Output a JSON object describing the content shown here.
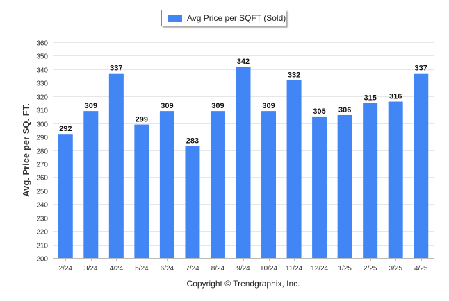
{
  "chart_data": {
    "type": "bar",
    "categories": [
      "2/24",
      "3/24",
      "4/24",
      "5/24",
      "6/24",
      "7/24",
      "8/24",
      "9/24",
      "10/24",
      "11/24",
      "12/24",
      "1/25",
      "2/25",
      "3/25",
      "4/25"
    ],
    "series": [
      {
        "name": "Avg Price per SQFT (Sold)",
        "values": [
          292,
          309,
          337,
          299,
          309,
          283,
          309,
          342,
          309,
          332,
          305,
          306,
          315,
          316,
          337
        ]
      }
    ],
    "xlabel": "",
    "ylabel": "Avg. Price per SQ. FT.",
    "ylim": [
      200,
      360
    ],
    "yticks": [
      200,
      210,
      220,
      230,
      240,
      250,
      260,
      270,
      280,
      290,
      300,
      310,
      320,
      330,
      340,
      350,
      360
    ],
    "grid": true,
    "legend": "top-center",
    "data_labels": true,
    "bar_color": "#4285f4"
  },
  "footer": {
    "copyright": "Copyright © Trendgraphix, Inc."
  }
}
